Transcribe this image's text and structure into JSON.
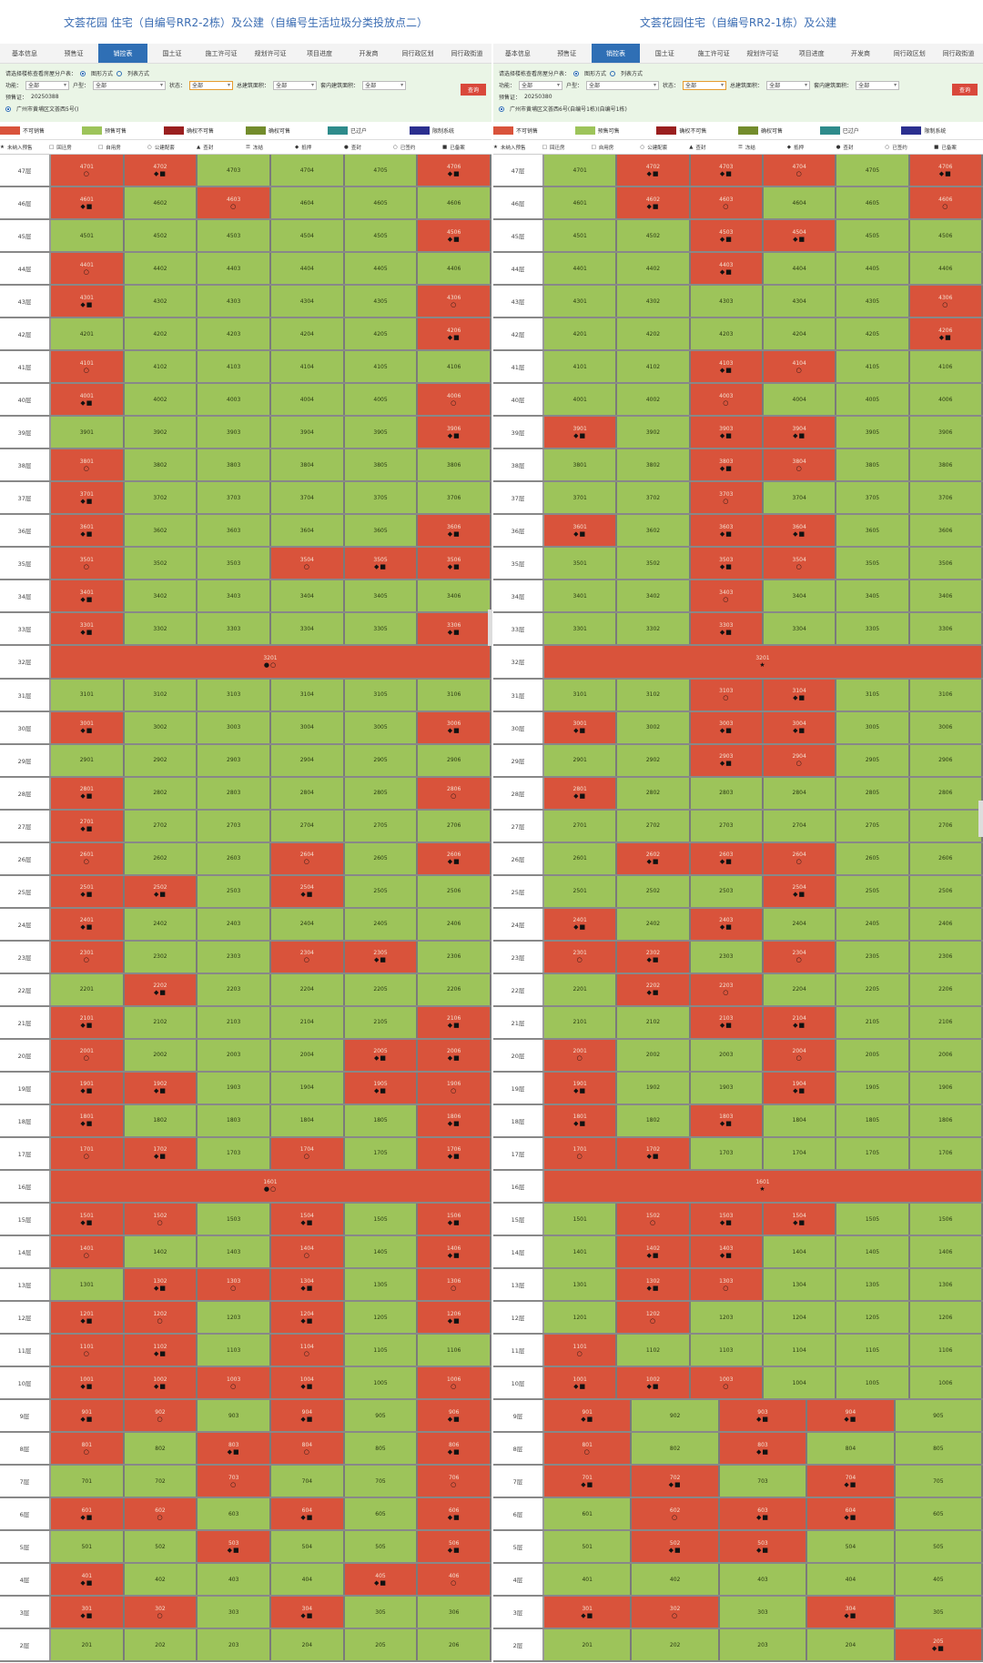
{
  "colors": {
    "green": "#9dc45a",
    "red": "#d9533b",
    "darkred": "#9a1f1f",
    "olive": "#738c2c",
    "teal": "#2e8b8b",
    "navy": "#2b2f8f",
    "nav_active": "#2f6fb5"
  },
  "left": {
    "title": "文荟花园 住宅（自编号RR2-2栋）及公建（自编号生活垃圾分类投放点二）",
    "nav": [
      "基本信息",
      "预售证",
      "销控表",
      "国土证",
      "施工许可证",
      "规划许可证",
      "项目进度",
      "开发商",
      "同行政区划",
      "同行政街道"
    ],
    "filter": {
      "prompt": "请选择楼栋查看房屋分户表：",
      "radio_graph": "图形方式",
      "radio_list": "列表方式",
      "fn_label": "功能：",
      "fn_value": "全部",
      "type_label": "户型：",
      "type_value": "全部",
      "status_label": "状态：",
      "status_value": "全部",
      "area_label": "总建筑面积：",
      "area_value": "全部",
      "inner_label": "套内建筑面积：",
      "inner_value": "全部",
      "query": "查询",
      "presale_label": "预售证：",
      "presale_value": "20250388",
      "building": "广州市黄埔区文荟西5号()"
    }
  },
  "right": {
    "title": "文荟花园住宅（自编号RR2-1栋）及公建",
    "nav": [
      "基本信息",
      "预售证",
      "销控表",
      "国土证",
      "施工许可证",
      "规划许可证",
      "项目进度",
      "开发商",
      "同行政区划",
      "同行政街道"
    ],
    "filter": {
      "prompt": "请选择楼栋查看房屋分户表：",
      "radio_graph": "图形方式",
      "radio_list": "列表方式",
      "fn_label": "功能：",
      "fn_value": "全部",
      "type_label": "户型：",
      "type_value": "全部",
      "status_label": "状态：",
      "status_value": "全部",
      "area_label": "总建筑面积：",
      "area_value": "全部",
      "inner_label": "套内建筑面积：",
      "inner_value": "全部",
      "query": "查询",
      "presale_label": "预售证：",
      "presale_value": "20250380",
      "building": "广州市黄埔区文荟西6号(自编号1栋)(自编号1栋)"
    }
  },
  "legend": [
    "不可销售",
    "预售可售",
    "确权不可售",
    "确权可售",
    "已过户",
    "限制系统"
  ],
  "legend2": [
    "未纳入预售",
    "回迁房",
    "自用房",
    "公建配套",
    "查封",
    "冻结",
    "抵押",
    "查封",
    "已签约",
    "已备案"
  ],
  "floors": [
    "47层",
    "46层",
    "45层",
    "44层",
    "43层",
    "42层",
    "41层",
    "40层",
    "39层",
    "38层",
    "37层",
    "36层",
    "35层",
    "34层",
    "33层",
    "32层",
    "31层",
    "30层",
    "29层",
    "28层",
    "27层",
    "26层",
    "25层",
    "24层",
    "23层",
    "22层",
    "21层",
    "20层",
    "19层",
    "18层",
    "17层",
    "16层",
    "15层",
    "14层",
    "13层",
    "12层",
    "11层",
    "10层",
    "9层",
    "8层",
    "7层",
    "6层",
    "5层",
    "4层",
    "3层",
    "2层"
  ],
  "left_rows": [
    "rrgggr",
    "rgrggg",
    "gggggr",
    "rggggg",
    "rggggr",
    "gggggr",
    "rggggg",
    "rggggr",
    "gggggr",
    "rggggg",
    "rggggg",
    "rggggr",
    "rggrrr",
    "rggggg",
    "rggggr",
    "W",
    "gggggg",
    "rggggr",
    "gggggg",
    "rggggr",
    "rggggg",
    "rggrgr",
    "rrgrgg",
    "rggggg",
    "rggrrg",
    "grgggg",
    "rggggr",
    "rgggrr",
    "rrggrr",
    "rggggr",
    "rrgrgr",
    "W",
    "rrgrgr",
    "rggrgr",
    "grrrgr",
    "rrgrgr",
    "rrgrgg",
    "rrrrgr",
    "rrgrgr",
    "rgrrgr",
    "ggrggr",
    "rrgrgr",
    "ggrggr",
    "rgggrr",
    "rrgrgg",
    "gggggg"
  ],
  "right_rows": [
    "grrrgr",
    "grrggr",
    "ggrrgg",
    "ggrggg",
    "gggggr",
    "gggggr",
    "ggrrgg",
    "ggrggg",
    "rgrrgg",
    "ggrrgg",
    "ggrggg",
    "rgrrgg",
    "ggrrgg",
    "ggrggg",
    "ggrggg",
    "W",
    "ggrrgg",
    "rgrrgg",
    "ggrrgg",
    "rggggg",
    "gggggg",
    "grrrgg",
    "gggrgg",
    "rgrggg",
    "rrgrgg",
    "grrggg",
    "ggrrgg",
    "rggrgg",
    "rggrgg",
    "rgrggg",
    "rrgggg",
    "W",
    "grrrgg",
    "grrggg",
    "grrggg",
    "grgggg",
    "rggggg",
    "rrrggg",
    "rgrrg",
    "rgrgg",
    "rrgrg",
    "grrrg",
    "grrgg",
    "ggggg",
    "rrgrg",
    "ggggr"
  ]
}
